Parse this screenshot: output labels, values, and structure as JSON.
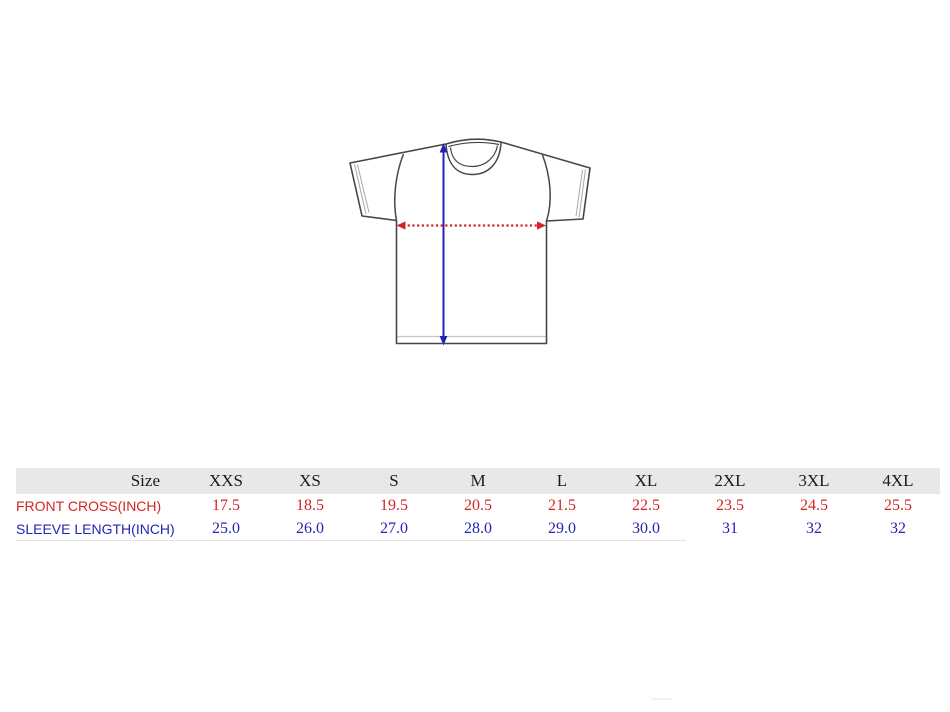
{
  "colors": {
    "red": "#d42424",
    "blue": "#2424b4",
    "header_bg": "#e8e8e8",
    "header_text": "#1a1a1a",
    "outline": "#474747",
    "stitch": "#a8a8a8",
    "hem_stitch": "#c6c6c6",
    "table_border": "#e4e4e4"
  },
  "diagram": {
    "description": "t-shirt front outline with measurement arrows",
    "arrows": [
      {
        "name": "front-cross-arrow",
        "orientation": "horizontal",
        "style": "dashed",
        "color": "#d42424"
      },
      {
        "name": "sleeve-length-arrow",
        "orientation": "vertical",
        "style": "solid",
        "color": "#2424b4"
      }
    ]
  },
  "table": {
    "size_label": "Size",
    "sizes": [
      "XXS",
      "XS",
      "S",
      "M",
      "L",
      "XL",
      "2XL",
      "3XL",
      "4XL"
    ],
    "rows": [
      {
        "id": "front-cross",
        "label": "FRONT CROSS(INCH)",
        "color": "#d42424",
        "values": [
          "17.5",
          "18.5",
          "19.5",
          "20.5",
          "21.5",
          "22.5",
          "23.5",
          "24.5",
          "25.5"
        ]
      },
      {
        "id": "sleeve-length",
        "label": "SLEEVE LENGTH(INCH)",
        "color": "#2424b4",
        "values": [
          "25.0",
          "26.0",
          "27.0",
          "28.0",
          "29.0",
          "30.0",
          "31",
          "32",
          "32"
        ]
      }
    ]
  },
  "chart_data": {
    "type": "table",
    "title": "T-shirt size chart (inches)",
    "categories": [
      "XXS",
      "XS",
      "S",
      "M",
      "L",
      "XL",
      "2XL",
      "3XL",
      "4XL"
    ],
    "series": [
      {
        "name": "FRONT CROSS(INCH)",
        "values": [
          17.5,
          18.5,
          19.5,
          20.5,
          21.5,
          22.5,
          23.5,
          24.5,
          25.5
        ]
      },
      {
        "name": "SLEEVE LENGTH(INCH)",
        "values": [
          25.0,
          26.0,
          27.0,
          28.0,
          29.0,
          30.0,
          31,
          32,
          32
        ]
      }
    ]
  }
}
